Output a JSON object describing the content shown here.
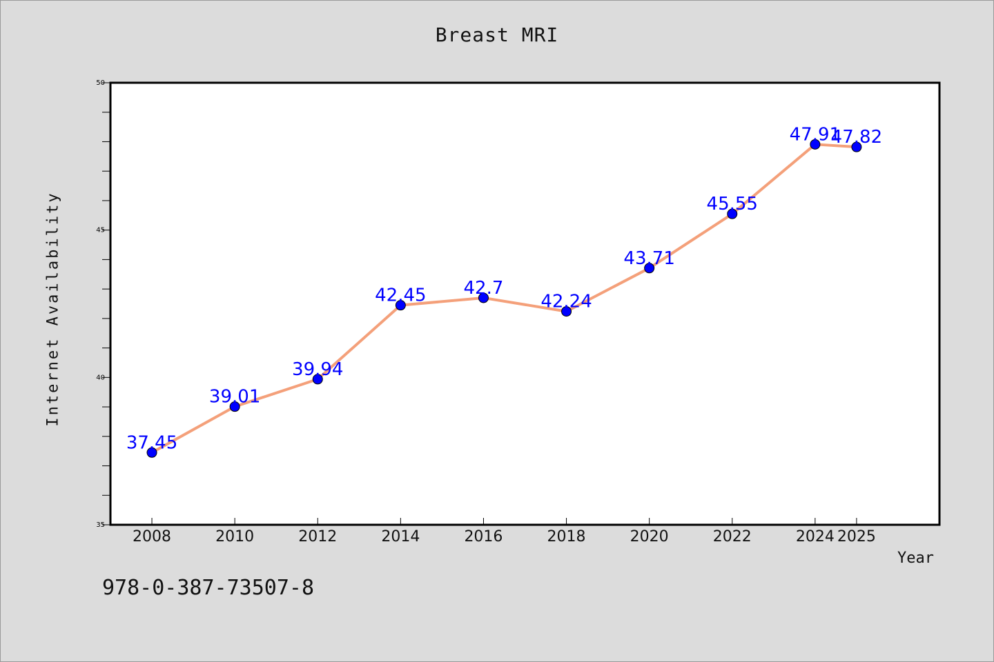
{
  "chart_data": {
    "type": "line",
    "title": "Breast MRI",
    "xlabel": "Year",
    "ylabel": "Internet Availability",
    "x": [
      "2008",
      "2010",
      "2012",
      "2014",
      "2016",
      "2018",
      "2020",
      "2022",
      "2024",
      "2025"
    ],
    "series": [
      {
        "values": [
          37.45,
          39.01,
          39.94,
          42.45,
          42.7,
          42.24,
          43.71,
          45.55,
          47.91,
          47.82
        ],
        "labels": [
          "37.45",
          "39.01",
          "39.94",
          "42.45",
          "42.7",
          "42.24",
          "43.71",
          "45.55",
          "47.91",
          "47.82"
        ],
        "line_color": "#f4a07a",
        "marker_color": "#0000ff"
      }
    ],
    "ylim": [
      35,
      50
    ],
    "yticks": [
      "35",
      "40",
      "45",
      "50"
    ],
    "grid": false,
    "legend": "none",
    "label_color": "#0000ff"
  },
  "footer": {
    "code": "978-0-387-73507-8"
  }
}
